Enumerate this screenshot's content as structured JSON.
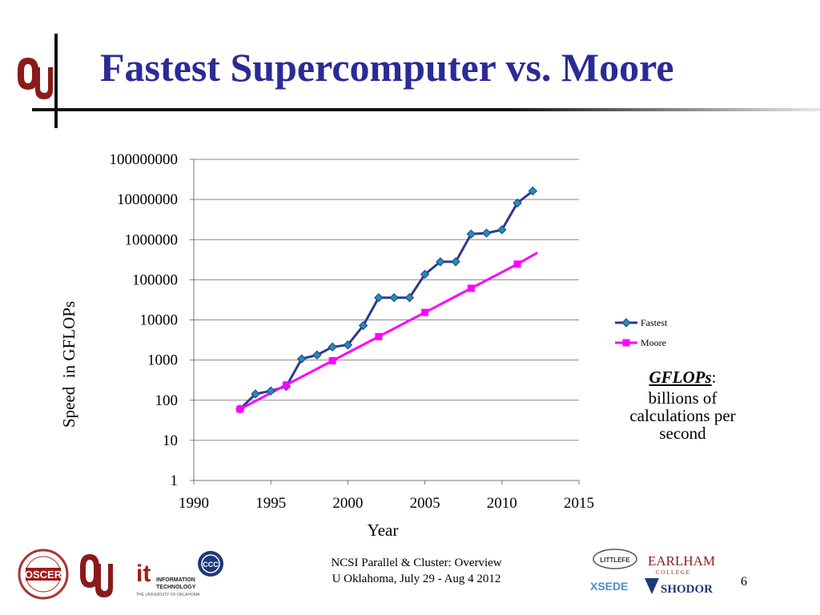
{
  "slide": {
    "title": "Fastest Supercomputer vs. Moore",
    "page_number": "6"
  },
  "note": {
    "term": "GFLOPs",
    "colon": ":",
    "definition": "billions of calculations per second"
  },
  "footer": {
    "line1": "NCSI Parallel & Cluster: Overview",
    "line2": "U Oklahoma, July 29 - Aug 4 2012"
  },
  "logos": {
    "oscer": "OSCER",
    "it_letters": "it",
    "it_text1": "INFORMATION",
    "it_text2": "TECHNOLOGY",
    "it_sub": "THE UNIVERSITY OF OKLAHOMA",
    "ccc": "CCC",
    "littlefe": "LITTLEFE",
    "earlham": "EARLHAM",
    "college": "C O L L E G E",
    "xsede": "XSEDE",
    "shodor": "SHODOR"
  },
  "colors": {
    "title": "#2b2b96",
    "fastest": "#2b3a8f",
    "fastest_marker": "#1f8fb3",
    "moore": "#ff00ff",
    "grid": "#8a8a8a"
  },
  "chart_data": {
    "type": "line",
    "xlabel": "Year",
    "ylabel": "Speed  in GFLOPs",
    "xlim": [
      1990,
      2015
    ],
    "ylim": [
      1,
      100000000
    ],
    "yscale": "log",
    "x_ticks": [
      "1990",
      "1995",
      "2000",
      "2005",
      "2010",
      "2015"
    ],
    "y_ticks": [
      "1",
      "10",
      "100",
      "1000",
      "10000",
      "100000",
      "1000000",
      "10000000",
      "100000000"
    ],
    "grid": true,
    "legend_position": "right",
    "series": [
      {
        "name": "Fastest",
        "marker": "diamond",
        "points": [
          [
            1993,
            60
          ],
          [
            1994,
            143
          ],
          [
            1995,
            170
          ],
          [
            1996,
            220
          ],
          [
            1997,
            1070
          ],
          [
            1998,
            1340
          ],
          [
            1999,
            2120
          ],
          [
            2000,
            2380
          ],
          [
            2001,
            7230
          ],
          [
            2002,
            35860
          ],
          [
            2003,
            35860
          ],
          [
            2004,
            35860
          ],
          [
            2005,
            136800
          ],
          [
            2006,
            280600
          ],
          [
            2007,
            280600
          ],
          [
            2008,
            1375780
          ],
          [
            2009,
            1456700
          ],
          [
            2010,
            1759000
          ],
          [
            2011,
            8162000
          ],
          [
            2012,
            16325000
          ]
        ]
      },
      {
        "name": "Moore",
        "marker": "square",
        "points": [
          [
            1993,
            60
          ],
          [
            1996,
            240
          ],
          [
            1999,
            960
          ],
          [
            2002,
            3840
          ],
          [
            2005,
            15360
          ],
          [
            2008,
            61440
          ],
          [
            2011,
            245760
          ],
          [
            2012.3,
            475000
          ]
        ]
      }
    ]
  }
}
